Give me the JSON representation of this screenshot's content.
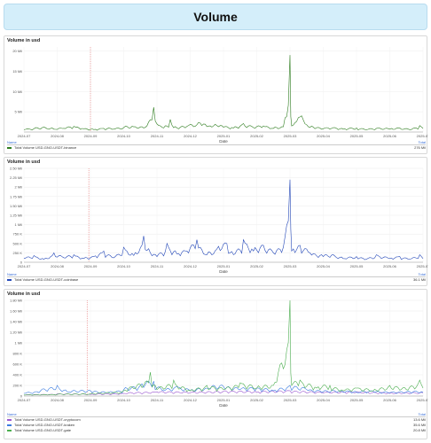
{
  "page": {
    "title": "Volume"
  },
  "legend_headers": {
    "name": "Name",
    "total": "Total"
  },
  "chart_data": [
    {
      "type": "line",
      "title": "Volume in usd",
      "xlabel": "Date",
      "x_ticks": [
        "2024-07",
        "2024-08",
        "2024-09",
        "2024-10",
        "2024-11",
        "2024-12",
        "2025-01",
        "2025-02",
        "2025-03",
        "2025-04",
        "2025-05",
        "2025-06",
        "2025-07"
      ],
      "y_ticks": [
        "",
        "5 Mil",
        "10 Mil",
        "15 Mil",
        "20 Mil"
      ],
      "ylim": [
        0,
        21
      ],
      "y_unit": "Mil",
      "marker_month": 2.0,
      "series": [
        {
          "name": "Total Volume USD-GNO-USDT-binance",
          "total": "276 Mil",
          "color": "#2e7d1f",
          "points": [
            [
              0,
              0.6
            ],
            [
              0.3,
              0.8
            ],
            [
              0.6,
              1.2
            ],
            [
              0.9,
              0.7
            ],
            [
              1.2,
              0.9
            ],
            [
              1.5,
              1.4
            ],
            [
              1.8,
              0.8
            ],
            [
              2.1,
              0.6
            ],
            [
              2.4,
              0.9
            ],
            [
              2.7,
              0.7
            ],
            [
              3.0,
              1.1
            ],
            [
              3.3,
              1.3
            ],
            [
              3.6,
              1.0
            ],
            [
              3.9,
              6.1
            ],
            [
              4.0,
              2.0
            ],
            [
              4.2,
              1.0
            ],
            [
              4.4,
              3.1
            ],
            [
              4.6,
              1.0
            ],
            [
              4.9,
              1.4
            ],
            [
              5.2,
              1.8
            ],
            [
              5.4,
              2.0
            ],
            [
              5.6,
              1.5
            ],
            [
              5.8,
              1.6
            ],
            [
              6.0,
              1.2
            ],
            [
              6.3,
              1.0
            ],
            [
              6.6,
              2.1
            ],
            [
              6.9,
              1.1
            ],
            [
              7.2,
              1.5
            ],
            [
              7.5,
              0.9
            ],
            [
              7.8,
              1.3
            ],
            [
              8.0,
              19.0
            ],
            [
              8.05,
              1.5
            ],
            [
              8.2,
              2.6
            ],
            [
              8.35,
              4.0
            ],
            [
              8.5,
              1.8
            ],
            [
              8.7,
              1.2
            ],
            [
              9.0,
              0.8
            ],
            [
              9.3,
              1.1
            ],
            [
              9.6,
              0.7
            ],
            [
              10.0,
              1.0
            ],
            [
              10.3,
              0.6
            ],
            [
              10.6,
              0.9
            ],
            [
              11.0,
              0.7
            ],
            [
              11.3,
              1.0
            ],
            [
              11.6,
              0.6
            ],
            [
              11.9,
              1.6
            ],
            [
              12.0,
              0.9
            ]
          ]
        }
      ]
    },
    {
      "type": "line",
      "title": "Volume in usd",
      "xlabel": "Date",
      "x_ticks": [
        "2024-07",
        "2024-08",
        "2024-09",
        "2024-10",
        "2024-11",
        "2024-12",
        "2025-01",
        "2025-02",
        "2025-03",
        "2025-04",
        "2025-05",
        "2025-06",
        "2025-07"
      ],
      "y_ticks": [
        "0",
        "250 K",
        "500 K",
        "750 K",
        "1 Mil",
        "1.25 Mil",
        "1.50 Mil",
        "1.75 Mil",
        "2 Mil",
        "2.25 Mil",
        "2.50 Mil"
      ],
      "ylim": [
        0,
        2.5
      ],
      "y_unit": "Mil",
      "marker_month": 1.95,
      "series": [
        {
          "name": "Total Volume USD-GNO-USDT-coinbase",
          "total": "36.1 Mil",
          "color": "#2448b8",
          "points": [
            [
              0,
              0.1
            ],
            [
              0.3,
              0.18
            ],
            [
              0.6,
              0.08
            ],
            [
              0.9,
              0.25
            ],
            [
              1.2,
              0.12
            ],
            [
              1.5,
              0.2
            ],
            [
              1.8,
              0.1
            ],
            [
              2.1,
              0.15
            ],
            [
              2.4,
              0.3
            ],
            [
              2.7,
              0.12
            ],
            [
              3.0,
              0.4
            ],
            [
              3.3,
              0.18
            ],
            [
              3.6,
              0.7
            ],
            [
              3.8,
              0.25
            ],
            [
              4.0,
              0.15
            ],
            [
              4.3,
              0.5
            ],
            [
              4.6,
              0.22
            ],
            [
              4.9,
              0.3
            ],
            [
              5.2,
              0.6
            ],
            [
              5.5,
              0.2
            ],
            [
              5.8,
              0.35
            ],
            [
              6.1,
              0.5
            ],
            [
              6.3,
              0.2
            ],
            [
              6.6,
              0.6
            ],
            [
              6.9,
              0.3
            ],
            [
              7.2,
              0.45
            ],
            [
              7.5,
              0.25
            ],
            [
              7.8,
              0.4
            ],
            [
              8.0,
              2.2
            ],
            [
              8.05,
              0.3
            ],
            [
              8.3,
              0.45
            ],
            [
              8.6,
              0.25
            ],
            [
              9.0,
              0.15
            ],
            [
              9.3,
              0.2
            ],
            [
              9.6,
              0.1
            ],
            [
              10.0,
              0.15
            ],
            [
              10.3,
              0.08
            ],
            [
              10.6,
              0.2
            ],
            [
              11.0,
              0.1
            ],
            [
              11.3,
              0.15
            ],
            [
              11.6,
              0.08
            ],
            [
              11.9,
              0.2
            ],
            [
              12.0,
              0.1
            ]
          ]
        }
      ]
    },
    {
      "type": "line",
      "title": "Volume in usd",
      "xlabel": "Date",
      "x_ticks": [
        "2024-07",
        "2024-08",
        "2024-09",
        "2024-10",
        "2024-11",
        "2024-12",
        "2025-01",
        "2025-02",
        "2025-03",
        "2025-04",
        "2025-05",
        "2025-06",
        "2025-07"
      ],
      "y_ticks": [
        "0",
        "200 K",
        "400 K",
        "600 K",
        "800 K",
        "1 Mil",
        "1.20 Mil",
        "1.40 Mil",
        "1.60 Mil",
        "1.80 Mil"
      ],
      "ylim": [
        0,
        1.8
      ],
      "y_unit": "Mil",
      "marker_month": 1.9,
      "series": [
        {
          "name": "Total Volume USD-GNO-USDT-cryptocom",
          "total": "13.6 Mil",
          "color": "#9b59d0",
          "points": [
            [
              0,
              0.02
            ],
            [
              1.0,
              0.04
            ],
            [
              2.0,
              0.03
            ],
            [
              3.0,
              0.05
            ],
            [
              4.0,
              0.08
            ],
            [
              5.0,
              0.06
            ],
            [
              6.0,
              0.09
            ],
            [
              7.0,
              0.07
            ],
            [
              8.0,
              0.1
            ],
            [
              9.0,
              0.06
            ],
            [
              10.0,
              0.08
            ],
            [
              11.0,
              0.05
            ],
            [
              12.0,
              0.06
            ]
          ]
        },
        {
          "name": "Total Volume USD-GNO-USDT-kraken",
          "total": "35.6 Mil",
          "color": "#3a7be0",
          "points": [
            [
              0,
              0.05
            ],
            [
              0.5,
              0.1
            ],
            [
              1.0,
              0.2
            ],
            [
              1.3,
              0.08
            ],
            [
              2.0,
              0.1
            ],
            [
              2.5,
              0.06
            ],
            [
              3.0,
              0.12
            ],
            [
              3.5,
              0.2
            ],
            [
              3.9,
              0.28
            ],
            [
              4.2,
              0.1
            ],
            [
              4.6,
              0.18
            ],
            [
              5.0,
              0.1
            ],
            [
              5.5,
              0.15
            ],
            [
              6.0,
              0.18
            ],
            [
              6.5,
              0.12
            ],
            [
              7.0,
              0.15
            ],
            [
              7.5,
              0.1
            ],
            [
              8.0,
              0.2
            ],
            [
              8.5,
              0.12
            ],
            [
              9.0,
              0.08
            ],
            [
              9.5,
              0.1
            ],
            [
              10.0,
              0.07
            ],
            [
              10.5,
              0.09
            ],
            [
              11.0,
              0.06
            ],
            [
              11.5,
              0.08
            ],
            [
              12.0,
              0.07
            ]
          ]
        },
        {
          "name": "Total Volume USD-GNO-USDT-gate",
          "total": "20.8 Mil",
          "color": "#4caf50",
          "points": [
            [
              0,
              0.02
            ],
            [
              1.0,
              0.03
            ],
            [
              2.0,
              0.04
            ],
            [
              3.0,
              0.1
            ],
            [
              3.8,
              0.45
            ],
            [
              4.0,
              0.12
            ],
            [
              4.5,
              0.3
            ],
            [
              5.0,
              0.1
            ],
            [
              5.5,
              0.2
            ],
            [
              6.0,
              0.12
            ],
            [
              6.5,
              0.25
            ],
            [
              7.0,
              0.15
            ],
            [
              7.5,
              0.2
            ],
            [
              8.0,
              1.8
            ],
            [
              8.05,
              0.2
            ],
            [
              8.3,
              0.3
            ],
            [
              8.8,
              0.15
            ],
            [
              9.2,
              0.2
            ],
            [
              9.6,
              0.1
            ],
            [
              10.0,
              0.15
            ],
            [
              10.5,
              0.1
            ],
            [
              11.0,
              0.2
            ],
            [
              11.5,
              0.12
            ],
            [
              11.9,
              0.3
            ],
            [
              12.0,
              0.15
            ]
          ]
        }
      ]
    }
  ]
}
